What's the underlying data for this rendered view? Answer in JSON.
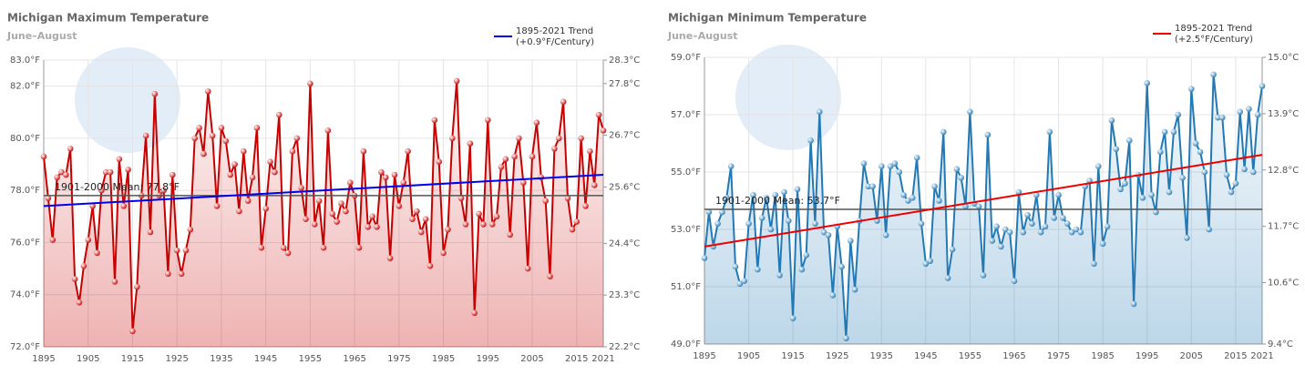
{
  "chart_data": [
    {
      "type": "line",
      "title": "Michigan Maximum Temperature",
      "subtitle": "June–August",
      "x": [
        1895,
        1896,
        1897,
        1898,
        1899,
        1900,
        1901,
        1902,
        1903,
        1904,
        1905,
        1906,
        1907,
        1908,
        1909,
        1910,
        1911,
        1912,
        1913,
        1914,
        1915,
        1916,
        1917,
        1918,
        1919,
        1920,
        1921,
        1922,
        1923,
        1924,
        1925,
        1926,
        1927,
        1928,
        1929,
        1930,
        1931,
        1932,
        1933,
        1934,
        1935,
        1936,
        1937,
        1938,
        1939,
        1940,
        1941,
        1942,
        1943,
        1944,
        1945,
        1946,
        1947,
        1948,
        1949,
        1950,
        1951,
        1952,
        1953,
        1954,
        1955,
        1956,
        1957,
        1958,
        1959,
        1960,
        1961,
        1962,
        1963,
        1964,
        1965,
        1966,
        1967,
        1968,
        1969,
        1970,
        1971,
        1972,
        1973,
        1974,
        1975,
        1976,
        1977,
        1978,
        1979,
        1980,
        1981,
        1982,
        1983,
        1984,
        1985,
        1986,
        1987,
        1988,
        1989,
        1990,
        1991,
        1992,
        1993,
        1994,
        1995,
        1996,
        1997,
        1998,
        1999,
        2000,
        2001,
        2002,
        2003,
        2004,
        2005,
        2006,
        2007,
        2008,
        2009,
        2010,
        2011,
        2012,
        2013,
        2014,
        2015,
        2016,
        2017,
        2018,
        2019,
        2020,
        2021
      ],
      "xlim": [
        1895,
        2021
      ],
      "xticks": [
        1895,
        1905,
        1915,
        1925,
        1935,
        1945,
        1955,
        1965,
        1975,
        1985,
        1995,
        2005,
        2015,
        2021
      ],
      "ylim": [
        72,
        83
      ],
      "yticks": [
        {
          "value": 72,
          "label": "72.0°F"
        },
        {
          "value": 74,
          "label": "74.0°F"
        },
        {
          "value": 76,
          "label": "76.0°F"
        },
        {
          "value": 78,
          "label": "78.0°F"
        },
        {
          "value": 80,
          "label": "80.0°F"
        },
        {
          "value": 82,
          "label": "82.0°F"
        },
        {
          "value": 83,
          "label": "83.0°F"
        }
      ],
      "y2lim": [
        22.2,
        28.3
      ],
      "y2ticks": [
        {
          "value": 22.2,
          "label": "22.2°C"
        },
        {
          "value": 23.3,
          "label": "23.3°C"
        },
        {
          "value": 24.4,
          "label": "24.4°C"
        },
        {
          "value": 25.6,
          "label": "25.6°C"
        },
        {
          "value": 26.7,
          "label": "26.7°C"
        },
        {
          "value": 27.8,
          "label": "27.8°C"
        },
        {
          "value": 28.3,
          "label": "28.3°C"
        }
      ],
      "grid": true,
      "legend": "upper right",
      "series": [
        {
          "color": "#c80000",
          "values": [
            79.3,
            77.7,
            76.1,
            78.5,
            78.7,
            78.6,
            79.6,
            74.6,
            73.7,
            75.1,
            76.1,
            77.4,
            75.6,
            78.0,
            78.7,
            78.7,
            74.5,
            79.2,
            77.4,
            78.8,
            72.6,
            74.3,
            77.8,
            80.1,
            76.4,
            81.7,
            77.8,
            78.0,
            74.8,
            78.6,
            75.7,
            74.8,
            75.7,
            76.5,
            80.0,
            80.4,
            79.4,
            81.8,
            80.1,
            77.4,
            80.4,
            79.9,
            78.6,
            79.0,
            77.2,
            79.5,
            77.6,
            78.5,
            80.4,
            75.8,
            77.3,
            79.1,
            78.7,
            80.9,
            75.8,
            75.6,
            79.5,
            80.0,
            78.1,
            76.9,
            82.1,
            76.7,
            77.6,
            75.8,
            80.3,
            77.1,
            76.8,
            77.5,
            77.2,
            78.3,
            77.8,
            75.8,
            79.5,
            76.6,
            77.0,
            76.6,
            78.7,
            78.5,
            75.4,
            78.6,
            77.4,
            78.3,
            79.5,
            76.9,
            77.2,
            76.4,
            76.9,
            75.1,
            80.7,
            79.1,
            75.6,
            76.5,
            80.0,
            82.2,
            77.7,
            76.7,
            79.8,
            73.3,
            77.1,
            76.7,
            80.7,
            76.7,
            77.0,
            78.9,
            79.2,
            76.3,
            79.3,
            80.0,
            78.3,
            75.0,
            79.3,
            80.6,
            78.5,
            77.6,
            74.7,
            79.6,
            80.0,
            81.4,
            77.7,
            76.5,
            76.8,
            80.0,
            77.4,
            79.5,
            78.2,
            80.9,
            80.3
          ]
        }
      ],
      "trend": {
        "label": [
          "1895-2021 Trend",
          "(+0.9°F/Century)"
        ],
        "color": "#0000ee",
        "x": [
          1895,
          2021
        ],
        "values": [
          77.4,
          78.6
        ]
      },
      "mean": {
        "label": "1901-2000 Mean: 77.8°F",
        "value": 77.8
      }
    },
    {
      "type": "line",
      "title": "Michigan Minimum Temperature",
      "subtitle": "June–August",
      "x": [
        1895,
        1896,
        1897,
        1898,
        1899,
        1900,
        1901,
        1902,
        1903,
        1904,
        1905,
        1906,
        1907,
        1908,
        1909,
        1910,
        1911,
        1912,
        1913,
        1914,
        1915,
        1916,
        1917,
        1918,
        1919,
        1920,
        1921,
        1922,
        1923,
        1924,
        1925,
        1926,
        1927,
        1928,
        1929,
        1930,
        1931,
        1932,
        1933,
        1934,
        1935,
        1936,
        1937,
        1938,
        1939,
        1940,
        1941,
        1942,
        1943,
        1944,
        1945,
        1946,
        1947,
        1948,
        1949,
        1950,
        1951,
        1952,
        1953,
        1954,
        1955,
        1956,
        1957,
        1958,
        1959,
        1960,
        1961,
        1962,
        1963,
        1964,
        1965,
        1966,
        1967,
        1968,
        1969,
        1970,
        1971,
        1972,
        1973,
        1974,
        1975,
        1976,
        1977,
        1978,
        1979,
        1980,
        1981,
        1982,
        1983,
        1984,
        1985,
        1986,
        1987,
        1988,
        1989,
        1990,
        1991,
        1992,
        1993,
        1994,
        1995,
        1996,
        1997,
        1998,
        1999,
        2000,
        2001,
        2002,
        2003,
        2004,
        2005,
        2006,
        2007,
        2008,
        2009,
        2010,
        2011,
        2012,
        2013,
        2014,
        2015,
        2016,
        2017,
        2018,
        2019,
        2020,
        2021
      ],
      "xlim": [
        1895,
        2021
      ],
      "xticks": [
        1895,
        1905,
        1915,
        1925,
        1935,
        1945,
        1955,
        1965,
        1975,
        1985,
        1995,
        2005,
        2015,
        2021
      ],
      "ylim": [
        49,
        59
      ],
      "yticks": [
        {
          "value": 49,
          "label": "49.0°F"
        },
        {
          "value": 51,
          "label": "51.0°F"
        },
        {
          "value": 53,
          "label": "53.0°F"
        },
        {
          "value": 55,
          "label": "55.0°F"
        },
        {
          "value": 57,
          "label": "57.0°F"
        },
        {
          "value": 59,
          "label": "59.0°F"
        }
      ],
      "y2lim": [
        9.4,
        15.0
      ],
      "y2ticks": [
        {
          "value": 9.4,
          "label": "9.4°C"
        },
        {
          "value": 10.6,
          "label": "10.6°C"
        },
        {
          "value": 11.7,
          "label": "11.7°C"
        },
        {
          "value": 12.8,
          "label": "12.8°C"
        },
        {
          "value": 13.9,
          "label": "13.9°C"
        },
        {
          "value": 15.0,
          "label": "15.0°C"
        }
      ],
      "grid": true,
      "legend": "upper right",
      "series": [
        {
          "color": "#2279b5",
          "values": [
            52.0,
            53.6,
            52.4,
            53.2,
            53.6,
            54.1,
            55.2,
            51.7,
            51.1,
            51.2,
            53.2,
            54.2,
            51.6,
            53.4,
            54.1,
            53.0,
            54.2,
            51.4,
            54.3,
            53.3,
            49.9,
            54.4,
            51.6,
            52.1,
            56.1,
            53.2,
            57.1,
            52.9,
            52.8,
            50.7,
            53.1,
            51.7,
            49.2,
            52.6,
            50.9,
            53.3,
            55.3,
            54.5,
            54.5,
            53.3,
            55.2,
            52.8,
            55.2,
            55.3,
            55.0,
            54.2,
            54.0,
            54.1,
            55.5,
            53.2,
            51.8,
            51.9,
            54.5,
            54.0,
            56.4,
            51.3,
            52.3,
            55.1,
            54.8,
            53.8,
            57.1,
            53.9,
            53.8,
            51.4,
            56.3,
            52.6,
            53.1,
            52.4,
            53.0,
            52.9,
            51.2,
            54.3,
            52.9,
            53.5,
            53.2,
            54.2,
            52.9,
            53.1,
            56.4,
            53.4,
            54.2,
            53.4,
            53.2,
            52.9,
            53.0,
            52.9,
            54.5,
            54.7,
            51.8,
            55.2,
            52.5,
            53.1,
            56.8,
            55.8,
            54.4,
            54.6,
            56.1,
            50.4,
            54.9,
            54.1,
            58.1,
            54.2,
            53.6,
            55.7,
            56.4,
            54.3,
            56.4,
            57.0,
            54.8,
            52.7,
            57.9,
            56.0,
            55.7,
            55.0,
            53.0,
            58.4,
            56.9,
            56.9,
            54.9,
            54.3,
            54.6,
            57.1,
            55.1,
            57.2,
            55.0,
            57.0,
            58.0
          ]
        }
      ],
      "trend": {
        "label": [
          "1895-2021 Trend",
          "(+2.5°F/Century)"
        ],
        "color": "#ee0000",
        "x": [
          1895,
          2021
        ],
        "values": [
          52.4,
          55.6
        ]
      },
      "mean": {
        "label": "1901-2000 Mean: 53.7°F",
        "value": 53.7
      }
    }
  ]
}
